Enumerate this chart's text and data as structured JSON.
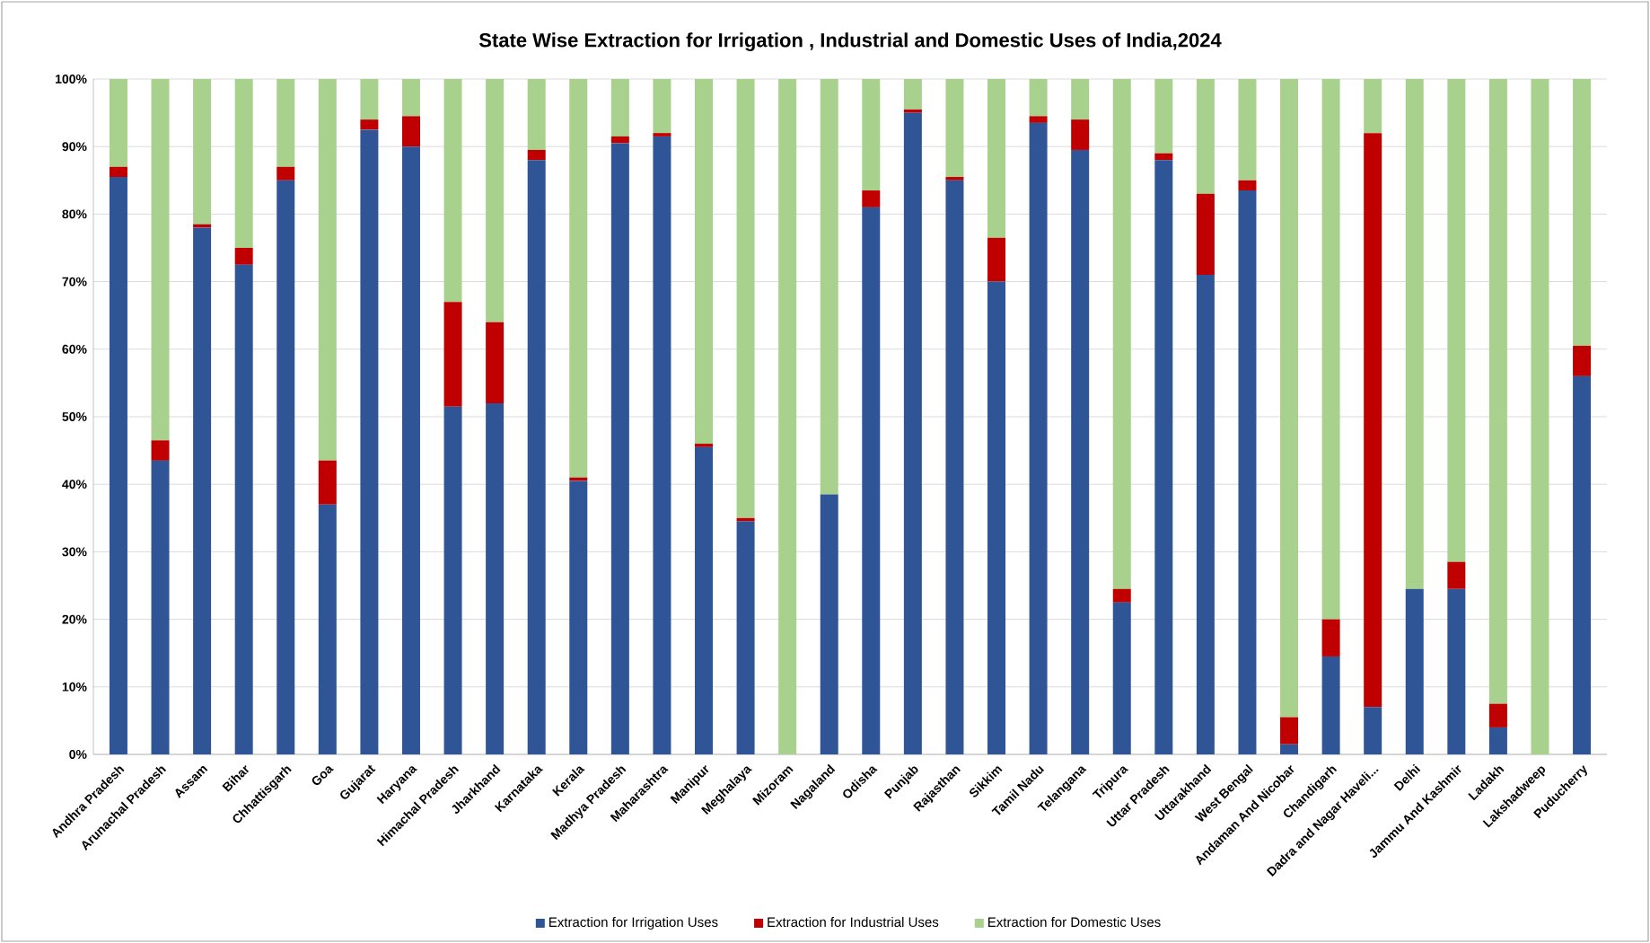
{
  "chart_data": {
    "type": "bar",
    "stacked": true,
    "title": "State Wise Extraction for Irrigation , Industrial and Domestic Uses of India,2024",
    "categories": [
      "Andhra Pradesh",
      "Arunachal Pradesh",
      "Assam",
      "Bihar",
      "Chhattisgarh",
      "Goa",
      "Gujarat",
      "Haryana",
      "Himachal Pradesh",
      "Jharkhand",
      "Karnataka",
      "Kerala",
      "Madhya Pradesh",
      "Maharashtra",
      "Manipur",
      "Meghalaya",
      "Mizoram",
      "Nagaland",
      "Odisha",
      "Punjab",
      "Rajasthan",
      "Sikkim",
      "Tamil Nadu",
      "Telangana",
      "Tripura",
      "Uttar Pradesh",
      "Uttarakhand",
      "West Bengal",
      "Andaman And Nicobar",
      "Chandigarh",
      "Dadra and Nagar Haveli...",
      "Delhi",
      "Jammu And Kashmir",
      "Ladakh",
      "Lakshadweep",
      "Puducherry"
    ],
    "series": [
      {
        "name": "Extraction for Irrigation Uses",
        "color": "#2f5597",
        "values": [
          85.5,
          43.5,
          78,
          72.5,
          85,
          37,
          92.5,
          90,
          51.5,
          52,
          88,
          40.5,
          90.5,
          91.5,
          45.5,
          34.5,
          0,
          38.5,
          81,
          95,
          85,
          70,
          93.5,
          89.5,
          22.5,
          88,
          71,
          83.5,
          1.5,
          14.5,
          7,
          24.5,
          24.5,
          4,
          0,
          56
        ]
      },
      {
        "name": "Extraction for Industrial Uses",
        "color": "#c00000",
        "values": [
          1.5,
          3,
          0.5,
          2.5,
          2,
          6.5,
          1.5,
          4.5,
          15.5,
          12,
          1.5,
          0.5,
          1,
          0.5,
          0.5,
          0.5,
          0,
          0,
          2.5,
          0.5,
          0.5,
          6.5,
          1,
          4.5,
          2,
          1,
          12,
          1.5,
          4,
          5.5,
          85,
          0,
          4,
          3.5,
          0,
          4.5
        ]
      },
      {
        "name": "Extraction for Domestic Uses",
        "color": "#a9d18e",
        "values": [
          13,
          53.5,
          21.5,
          25,
          13,
          56.5,
          6,
          5.5,
          33,
          36,
          10.5,
          59,
          8.5,
          8,
          54,
          65,
          100,
          61.5,
          16.5,
          4.5,
          14.5,
          23.5,
          5.5,
          6,
          75.5,
          11,
          17,
          15,
          94.5,
          80,
          8,
          75.5,
          71.5,
          92.5,
          100,
          39.5
        ]
      }
    ],
    "ylim": [
      0,
      100
    ],
    "yticks": [
      {
        "value": 0,
        "label": "0%"
      },
      {
        "value": 10,
        "label": "10%"
      },
      {
        "value": 20,
        "label": "20%"
      },
      {
        "value": 30,
        "label": "30%"
      },
      {
        "value": 40,
        "label": "40%"
      },
      {
        "value": 50,
        "label": "50%"
      },
      {
        "value": 60,
        "label": "60%"
      },
      {
        "value": 70,
        "label": "70%"
      },
      {
        "value": 80,
        "label": "80%"
      },
      {
        "value": 90,
        "label": "90%"
      },
      {
        "value": 100,
        "label": "100%"
      }
    ],
    "grid": "y",
    "legend": "bottom"
  }
}
